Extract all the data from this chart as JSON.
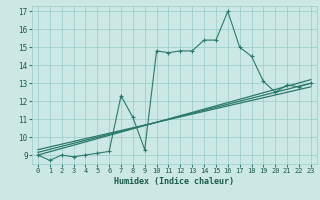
{
  "xlabel": "Humidex (Indice chaleur)",
  "bg_color": "#cce8e4",
  "grid_color": "#99ccc6",
  "line_color": "#2a7a6a",
  "x_data": [
    0,
    1,
    2,
    3,
    4,
    5,
    6,
    7,
    8,
    9,
    10,
    11,
    12,
    13,
    14,
    15,
    16,
    17,
    18,
    19,
    20,
    21,
    22,
    23
  ],
  "y_main": [
    9.0,
    8.7,
    9.0,
    8.9,
    9.0,
    9.1,
    9.2,
    12.3,
    11.1,
    9.3,
    14.8,
    14.7,
    14.8,
    14.8,
    15.4,
    15.4,
    17.0,
    15.0,
    14.5,
    13.1,
    12.5,
    12.9,
    12.8,
    13.0
  ],
  "trend_lines": [
    {
      "x": [
        0,
        23
      ],
      "y": [
        9.0,
        13.2
      ]
    },
    {
      "x": [
        0,
        23
      ],
      "y": [
        9.15,
        13.0
      ]
    },
    {
      "x": [
        0,
        23
      ],
      "y": [
        9.3,
        12.8
      ]
    }
  ],
  "ylim": [
    8.5,
    17.3
  ],
  "xlim": [
    -0.5,
    23.5
  ],
  "yticks": [
    9,
    10,
    11,
    12,
    13,
    14,
    15,
    16,
    17
  ],
  "xticks": [
    0,
    1,
    2,
    3,
    4,
    5,
    6,
    7,
    8,
    9,
    10,
    11,
    12,
    13,
    14,
    15,
    16,
    17,
    18,
    19,
    20,
    21,
    22,
    23
  ]
}
